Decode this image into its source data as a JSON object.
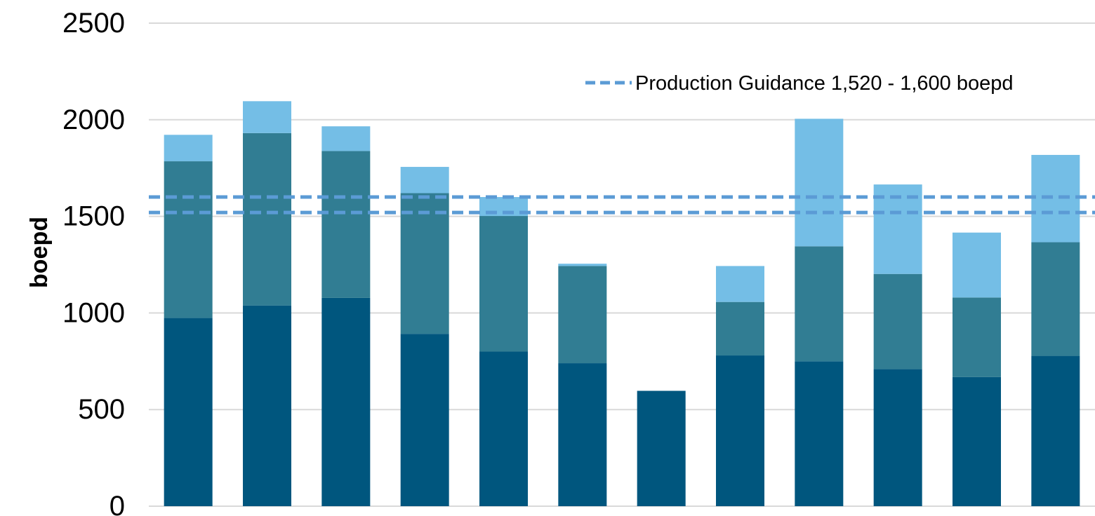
{
  "chart_data": {
    "type": "bar",
    "stacked": true,
    "title": "",
    "xlabel": "",
    "ylabel": "boepd",
    "ylim": [
      0,
      2500
    ],
    "yticks": [
      0,
      500,
      1000,
      1500,
      2000,
      2500
    ],
    "grid": true,
    "categories": [
      "",
      "",
      "",
      "",
      "",
      "",
      "",
      "",
      "",
      "",
      "",
      ""
    ],
    "series": [
      {
        "color": "#00567e",
        "values": [
          975,
          1038,
          1078,
          892,
          800,
          740,
          597,
          780,
          750,
          710,
          668,
          778
        ]
      },
      {
        "color": "#317d93",
        "values": [
          810,
          893,
          760,
          728,
          702,
          503,
          0,
          277,
          595,
          492,
          412,
          588
        ]
      },
      {
        "color": "#74bee6",
        "values": [
          137,
          165,
          128,
          136,
          98,
          12,
          0,
          186,
          660,
          463,
          336,
          452
        ]
      }
    ],
    "reference_lines": [
      {
        "value": 1520,
        "color": "#5b9bd5",
        "style": "dashed"
      },
      {
        "value": 1600,
        "color": "#5b9bd5",
        "style": "dashed"
      }
    ],
    "legend": {
      "position": "top-right",
      "entries": [
        {
          "label": "Production Guidance 1,520 - 1,600 boepd",
          "color": "#5b9bd5",
          "style": "dashed"
        }
      ]
    }
  }
}
